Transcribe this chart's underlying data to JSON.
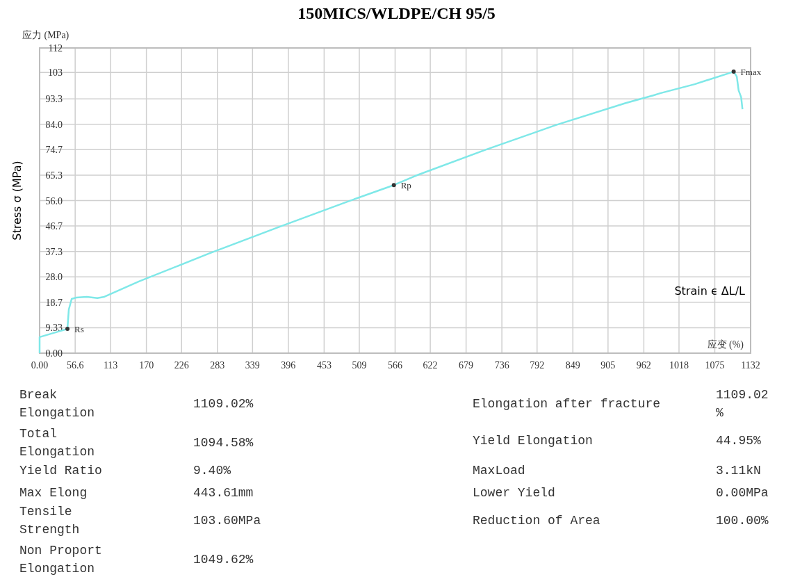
{
  "chart_data": {
    "type": "line",
    "title": "150MICS/WLDPE/CH  95/5",
    "xlabel": "应变 (%)",
    "ylabel": "Stress σ (MPa)",
    "x": [
      0,
      0,
      44.3,
      46.5,
      51,
      58.6,
      75,
      92,
      103,
      158,
      269,
      380,
      490,
      564,
      601,
      711,
      822,
      933,
      977,
      988,
      1043,
      1105,
      1110,
      1113,
      1117,
      1119
    ],
    "series": [
      {
        "color": "#7fe8e8",
        "values": [
          0,
          5.9,
          8.9,
          16,
          19.9,
          20.4,
          20.7,
          20.2,
          20.7,
          26.3,
          36.5,
          46.2,
          55.6,
          61.7,
          65.3,
          74.7,
          83.7,
          91.8,
          94.6,
          95.4,
          98.7,
          103.3,
          101.5,
          96.4,
          93.9,
          89.5
        ]
      }
    ],
    "xlim": [
      0,
      1132
    ],
    "ylim": [
      0,
      112
    ],
    "xticks": [
      {
        "value": 0,
        "label": "0.00"
      },
      56.6,
      113,
      170,
      226,
      283,
      339,
      396,
      453,
      509,
      566,
      622,
      679,
      736,
      792,
      849,
      905,
      962,
      1018,
      1075,
      1132
    ],
    "yticks": [
      {
        "value": 0,
        "label": "0.00"
      },
      9.33,
      18.7,
      {
        "value": 28,
        "label": "28.0"
      },
      37.3,
      46.7,
      {
        "value": 56,
        "label": "56.0"
      },
      65.3,
      74.7,
      {
        "value": 84,
        "label": "84.0"
      },
      93.3,
      103,
      112
    ],
    "grid": true,
    "marker": "none",
    "line_style": "solid",
    "annotations": [
      "应力 (MPa)",
      "Strain ϵ ΔL/L",
      {
        "text": "Rs",
        "x": 44.3,
        "y": 8.9
      },
      {
        "text": "Rp",
        "x": 564,
        "y": 61.7
      },
      {
        "text": "Fmax",
        "x": 1105,
        "y": 103.3
      },
      "Break Elongation",
      "1109.02%",
      "Total Elongation",
      "1094.58%",
      "Yield Ratio",
      "9.40%",
      "Max Elong",
      "443.61mm",
      "Tensile Strength",
      "103.60MPa",
      "Non Proport Elongation",
      "1049.62%",
      "Elongation after fracture",
      "1109.02 %",
      "Yield Elongation",
      "44.95%",
      "MaxLoad",
      "3.11kN",
      "Lower Yield",
      "0.00MPa",
      "Reduction of Area",
      "100.00%"
    ]
  }
}
